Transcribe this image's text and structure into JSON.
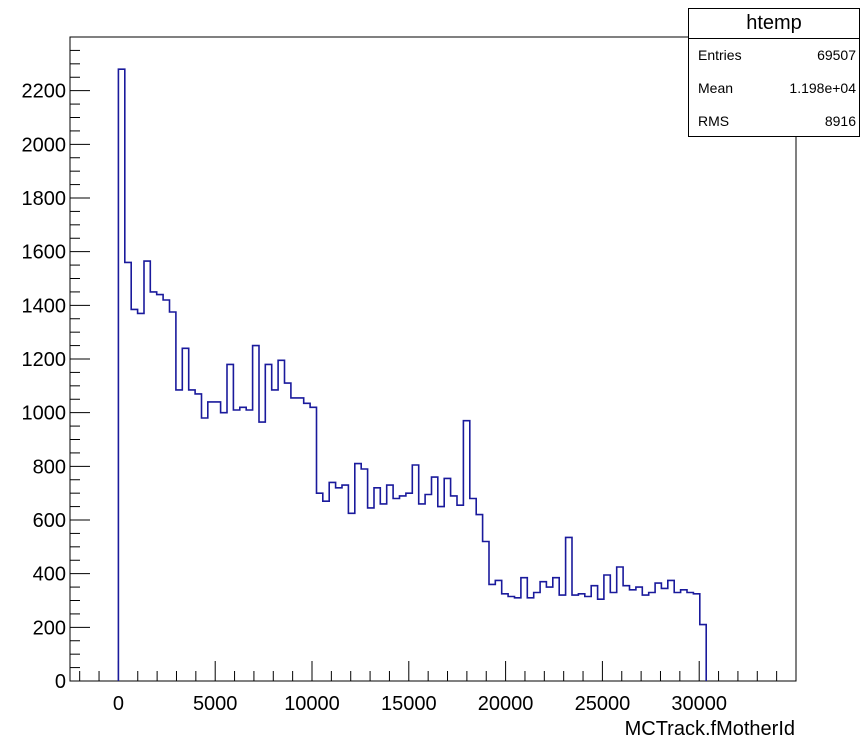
{
  "chart_data": {
    "type": "histogram",
    "xlabel": "MCTrack.fMotherId",
    "ylabel": "",
    "xlim": [
      -2500,
      35000
    ],
    "ylim": [
      0,
      2400
    ],
    "x_ticks": [
      0,
      5000,
      10000,
      15000,
      20000,
      25000,
      30000
    ],
    "y_ticks": [
      0,
      200,
      400,
      600,
      800,
      1000,
      1200,
      1400,
      1600,
      1800,
      2000,
      2200
    ],
    "bin_width": 330,
    "bin_start": 0,
    "values": [
      2280,
      1560,
      1385,
      1370,
      1565,
      1450,
      1440,
      1420,
      1375,
      1085,
      1240,
      1085,
      1070,
      980,
      1040,
      1040,
      1000,
      1180,
      1010,
      1020,
      1010,
      1250,
      965,
      1180,
      1085,
      1195,
      1110,
      1055,
      1055,
      1035,
      1020,
      700,
      670,
      740,
      720,
      730,
      625,
      810,
      790,
      645,
      720,
      660,
      730,
      680,
      690,
      700,
      805,
      660,
      695,
      760,
      650,
      755,
      690,
      655,
      970,
      680,
      620,
      520,
      360,
      375,
      325,
      315,
      310,
      385,
      310,
      330,
      370,
      350,
      385,
      320,
      535,
      320,
      325,
      315,
      355,
      305,
      395,
      330,
      425,
      355,
      340,
      350,
      320,
      330,
      365,
      345,
      375,
      330,
      340,
      330,
      325,
      210
    ],
    "grid": false,
    "legend": "none"
  },
  "stats_box": {
    "title": "htemp",
    "rows": [
      {
        "label": "Entries",
        "value": "69507"
      },
      {
        "label": "Mean",
        "value": "1.198e+04"
      },
      {
        "label": "RMS",
        "value": "8916"
      }
    ]
  },
  "colors": {
    "line": "#1a1a9c",
    "axis": "#000000"
  }
}
